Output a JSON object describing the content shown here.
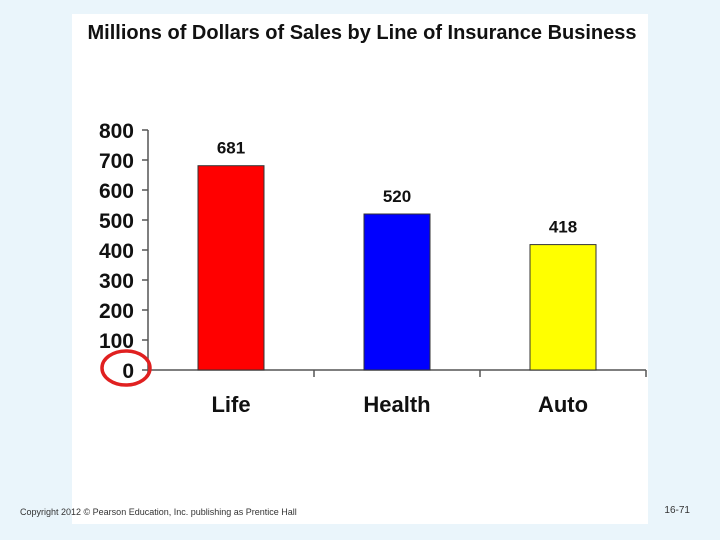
{
  "chart_data": {
    "type": "bar",
    "title": "Millions of Dollars of Sales by Line of Insurance Business",
    "categories": [
      "Life",
      "Health",
      "Auto"
    ],
    "values": [
      681,
      520,
      418
    ],
    "data_labels": [
      "681",
      "520",
      "418"
    ],
    "colors": [
      "#ff0000",
      "#0000ff",
      "#ffff00"
    ],
    "ylim": [
      0,
      800
    ],
    "yticks": [
      0,
      100,
      200,
      300,
      400,
      500,
      600,
      700,
      800
    ],
    "xlabel": "",
    "ylabel": "",
    "grid": false,
    "annotation": "red circle around the zero on the vertical axis"
  },
  "footer": {
    "copyright": "Copyright 2012 © Pearson Education, Inc. publishing as Prentice Hall",
    "page": "16-71"
  }
}
